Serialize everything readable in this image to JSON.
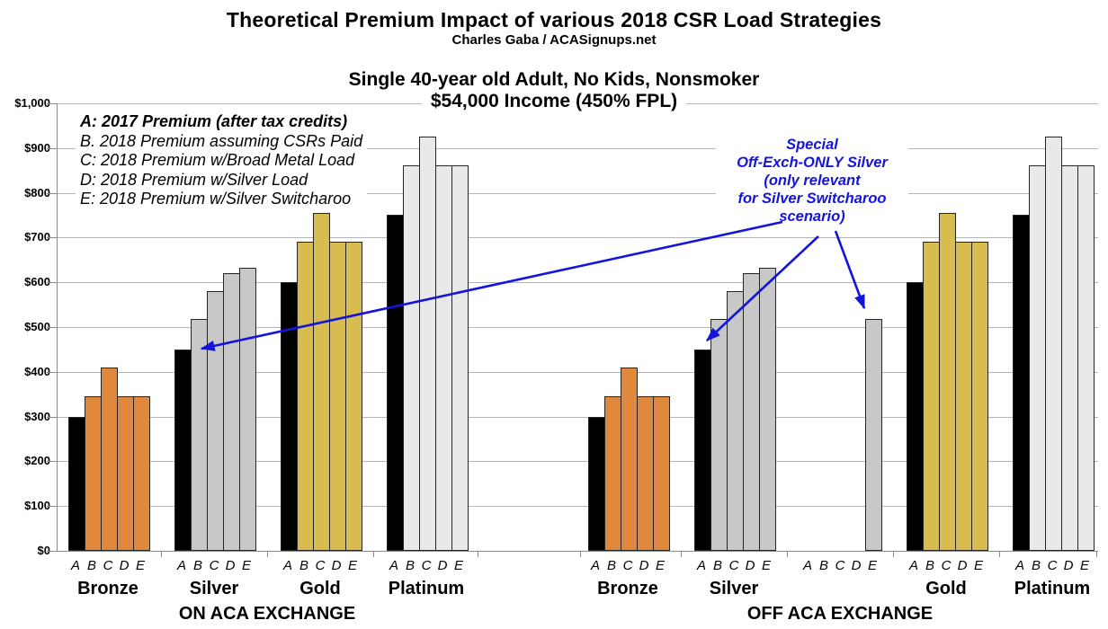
{
  "header": {
    "title": "Theoretical Premium Impact of various 2018 CSR Load Strategies",
    "credit": "Charles Gaba / ACASignups.net"
  },
  "chart_title": {
    "line1": "Single 40-year old Adult, No Kids, Nonsmoker",
    "line2": "$54,000 Income (450% FPL)"
  },
  "chart_data": {
    "type": "bar",
    "title": "Theoretical Premium Impact of various 2018 CSR Load Strategies",
    "subtitle": "Single 40-year old Adult, No Kids, Nonsmoker — $54,000 Income (450% FPL)",
    "ylim": [
      0,
      1000
    ],
    "ytick_step": 100,
    "ytick_labels": [
      "$0",
      "$100",
      "$200",
      "$300",
      "$400",
      "$500",
      "$600",
      "$700",
      "$800",
      "$900",
      "$1,000"
    ],
    "grid": true,
    "bar_labels": [
      "A",
      "B",
      "C",
      "D",
      "E"
    ],
    "a_bar_color": "#000000",
    "legend_items": [
      {
        "key": "A",
        "label": "A: 2017 Premium (after tax credits)",
        "emphasis": "bold-italic"
      },
      {
        "key": "B",
        "label": "B. 2018 Premium assuming CSRs Paid",
        "emphasis": "italic"
      },
      {
        "key": "C",
        "label": "C: 2018 Premium w/Broad Metal Load",
        "emphasis": "italic"
      },
      {
        "key": "D",
        "label": "D: 2018 Premium w/Silver Load",
        "emphasis": "italic"
      },
      {
        "key": "E",
        "label": "E: 2018 Premium w/Silver Switcharoo",
        "emphasis": "italic"
      }
    ],
    "annotation": {
      "lines": [
        "Special",
        "Off-Exch-ONLY Silver",
        "(only relevant",
        "for Silver Switcharoo",
        "scenario)"
      ],
      "color": "#1414dd"
    },
    "sections": [
      {
        "label": "ON ACA EXCHANGE",
        "groups": [
          {
            "label": "Bronze",
            "color": "#e0883c",
            "values": [
              300,
              345,
              410,
              345,
              345
            ]
          },
          {
            "label": "Silver",
            "color": "#c8c8c8",
            "values": [
              450,
              518,
              580,
              620,
              632
            ]
          },
          {
            "label": "Gold",
            "color": "#d9bc50",
            "values": [
              600,
              690,
              755,
              690,
              690
            ]
          },
          {
            "label": "Platinum",
            "color": "#e9e9e9",
            "values": [
              750,
              862,
              925,
              862,
              862
            ]
          }
        ]
      },
      {
        "label": "OFF ACA EXCHANGE",
        "groups": [
          {
            "label": "Bronze",
            "color": "#e0883c",
            "values": [
              300,
              345,
              410,
              345,
              345
            ]
          },
          {
            "label": "Silver",
            "color": "#c8c8c8",
            "values": [
              450,
              518,
              580,
              620,
              632
            ]
          },
          {
            "label": "",
            "color": "#c8c8c8",
            "values": [
              null,
              null,
              null,
              null,
              518
            ],
            "note": "special-off-exch-only-silver"
          },
          {
            "label": "Gold",
            "color": "#d9bc50",
            "values": [
              600,
              690,
              755,
              690,
              690
            ]
          },
          {
            "label": "Platinum",
            "color": "#e9e9e9",
            "values": [
              750,
              862,
              925,
              862,
              862
            ]
          }
        ]
      }
    ]
  }
}
